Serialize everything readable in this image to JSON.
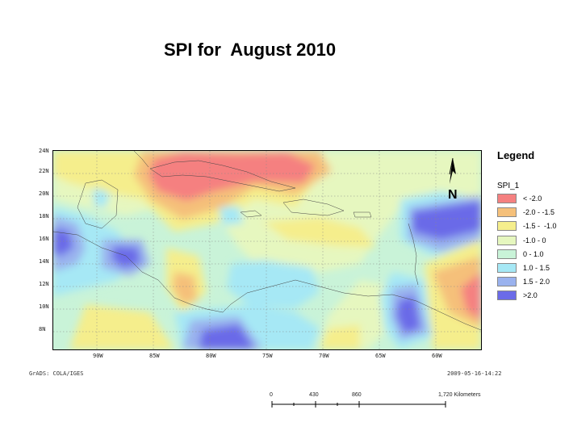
{
  "title": "SPI for  August 2010",
  "map": {
    "lat_labels": [
      "24N",
      "22N",
      "20N",
      "18N",
      "16N",
      "14N",
      "12N",
      "10N",
      "8N"
    ],
    "lon_labels": [
      "90W",
      "85W",
      "80W",
      "75W",
      "70W",
      "65W",
      "60W"
    ],
    "credit": "GrADS: COLA/IGES",
    "timestamp": "2009-05-16-14:22",
    "colors": {
      "lt_neg2": "#f58080",
      "neg2_neg15": "#f5c07a",
      "neg15_neg1": "#f5ee8c",
      "neg1_0": "#e6f7bf",
      "zero_1": "#c9f3d8",
      "one_15": "#a6e8f5",
      "one5_2": "#9ab2ee",
      "gt_2": "#6b6be8"
    }
  },
  "legend": {
    "title": "Legend",
    "layer": "SPI_1",
    "items": [
      {
        "label": "< -2.0",
        "color": "#f58080"
      },
      {
        "label": "-2.0 - -1.5",
        "color": "#f5c07a"
      },
      {
        "label": "-1.5 -  -1.0",
        "color": "#f5ee8c"
      },
      {
        "label": "-1.0 - 0",
        "color": "#e6f7bf"
      },
      {
        "label": "0 - 1.0",
        "color": "#c9f3d8"
      },
      {
        "label": "1.0 - 1.5",
        "color": "#a6e8f5"
      },
      {
        "label": "1.5 - 2.0",
        "color": "#9ab2ee"
      },
      {
        "label": ">2.0",
        "color": "#6b6be8"
      }
    ]
  },
  "north_arrow": {
    "label": "N"
  },
  "scale": {
    "labels": [
      "0",
      "430",
      "860",
      "1,720 Kilometers"
    ]
  }
}
